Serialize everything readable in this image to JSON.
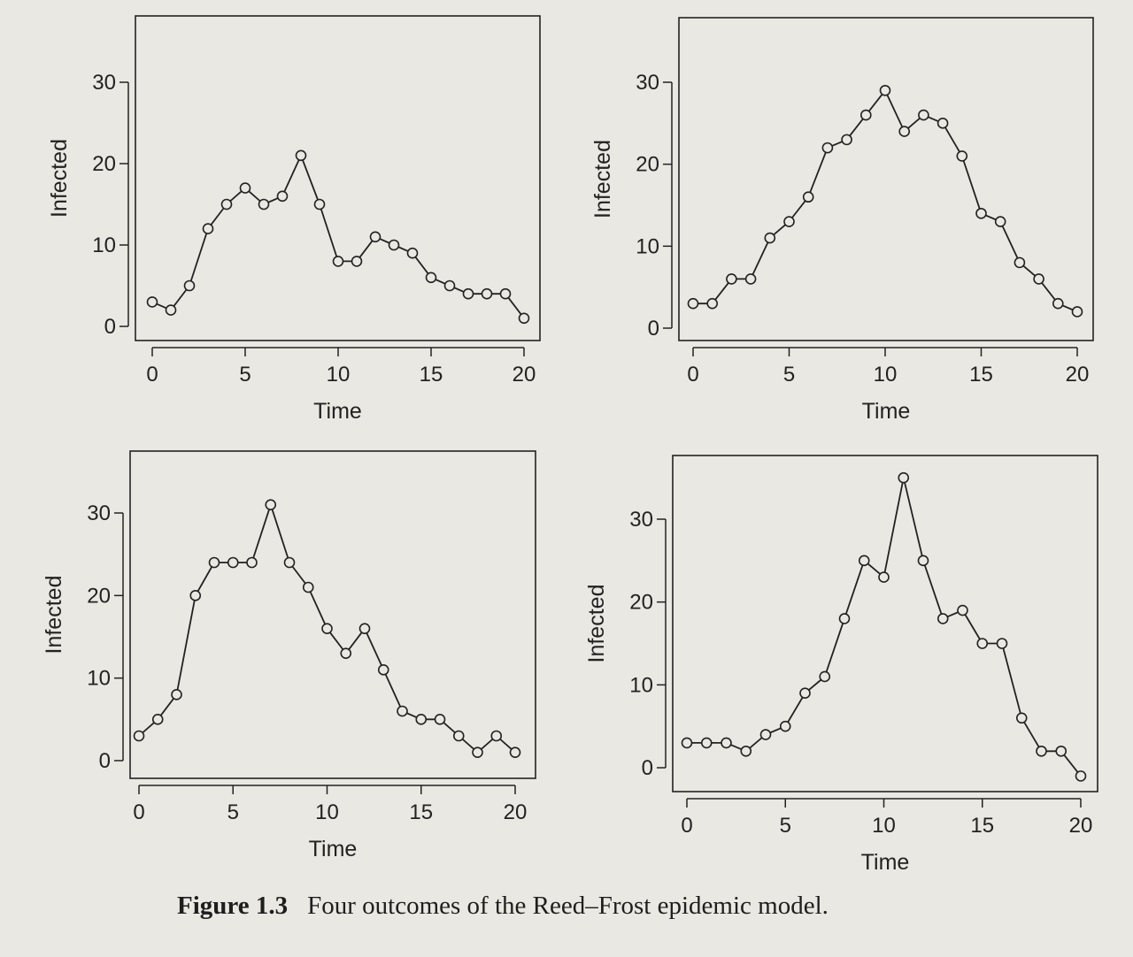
{
  "caption": {
    "number": "Figure 1.3",
    "text": "Four outcomes of the Reed–Frost epidemic model."
  },
  "style": {
    "line_color": "#222222",
    "background": "#e9e8e2"
  },
  "chart_data": [
    {
      "type": "line",
      "title": "",
      "xlabel": "Time",
      "ylabel": "Infected",
      "xlim": [
        0,
        20
      ],
      "ylim": [
        0,
        30
      ],
      "xticks": [
        "0",
        "5",
        "10",
        "15",
        "20"
      ],
      "yticks": [
        "0",
        "10",
        "20",
        "30"
      ],
      "grid": false,
      "markers": "open-circle",
      "series": [
        {
          "x": [
            0,
            1,
            2,
            3,
            4,
            5,
            6,
            7,
            8,
            9,
            10,
            11,
            12,
            13,
            14,
            15,
            16,
            17,
            18,
            19,
            20
          ],
          "values": [
            3,
            2,
            5,
            12,
            15,
            17,
            15,
            16,
            21,
            15,
            8,
            8,
            11,
            10,
            9,
            6,
            5,
            4,
            4,
            4,
            1
          ]
        }
      ]
    },
    {
      "type": "line",
      "title": "",
      "xlabel": "Time",
      "ylabel": "Infected",
      "xlim": [
        0,
        20
      ],
      "ylim": [
        0,
        30
      ],
      "xticks": [
        "0",
        "5",
        "10",
        "15",
        "20"
      ],
      "yticks": [
        "0",
        "10",
        "20",
        "30"
      ],
      "grid": false,
      "markers": "open-circle",
      "series": [
        {
          "x": [
            0,
            1,
            2,
            3,
            4,
            5,
            6,
            7,
            8,
            9,
            10,
            11,
            12,
            13,
            14,
            15,
            16,
            17,
            18,
            19,
            20
          ],
          "values": [
            3,
            3,
            6,
            6,
            11,
            13,
            16,
            22,
            23,
            26,
            29,
            24,
            26,
            25,
            21,
            14,
            13,
            8,
            6,
            3,
            2
          ]
        }
      ]
    },
    {
      "type": "line",
      "title": "",
      "xlabel": "Time",
      "ylabel": "Infected",
      "xlim": [
        0,
        20
      ],
      "ylim": [
        0,
        30
      ],
      "xticks": [
        "0",
        "5",
        "10",
        "15",
        "20"
      ],
      "yticks": [
        "0",
        "10",
        "20",
        "30"
      ],
      "grid": false,
      "markers": "open-circle",
      "series": [
        {
          "x": [
            0,
            1,
            2,
            3,
            4,
            5,
            6,
            7,
            8,
            9,
            10,
            11,
            12,
            13,
            14,
            15,
            16,
            17,
            18,
            19,
            20
          ],
          "values": [
            3,
            5,
            8,
            20,
            24,
            24,
            24,
            31,
            24,
            21,
            16,
            13,
            16,
            11,
            6,
            5,
            5,
            3,
            1,
            3,
            1
          ]
        }
      ]
    },
    {
      "type": "line",
      "title": "",
      "xlabel": "Time",
      "ylabel": "Infected",
      "xlim": [
        0,
        20
      ],
      "ylim": [
        0,
        35
      ],
      "xticks": [
        "0",
        "5",
        "10",
        "15",
        "20"
      ],
      "yticks": [
        "0",
        "10",
        "20",
        "30"
      ],
      "grid": false,
      "markers": "open-circle",
      "series": [
        {
          "x": [
            0,
            1,
            2,
            3,
            4,
            5,
            6,
            7,
            8,
            9,
            10,
            11,
            12,
            13,
            14,
            15,
            16,
            17,
            18,
            19,
            20
          ],
          "values": [
            3,
            3,
            3,
            2,
            4,
            5,
            9,
            11,
            18,
            25,
            23,
            35,
            25,
            18,
            19,
            15,
            15,
            6,
            2,
            2,
            -1
          ]
        }
      ]
    }
  ]
}
